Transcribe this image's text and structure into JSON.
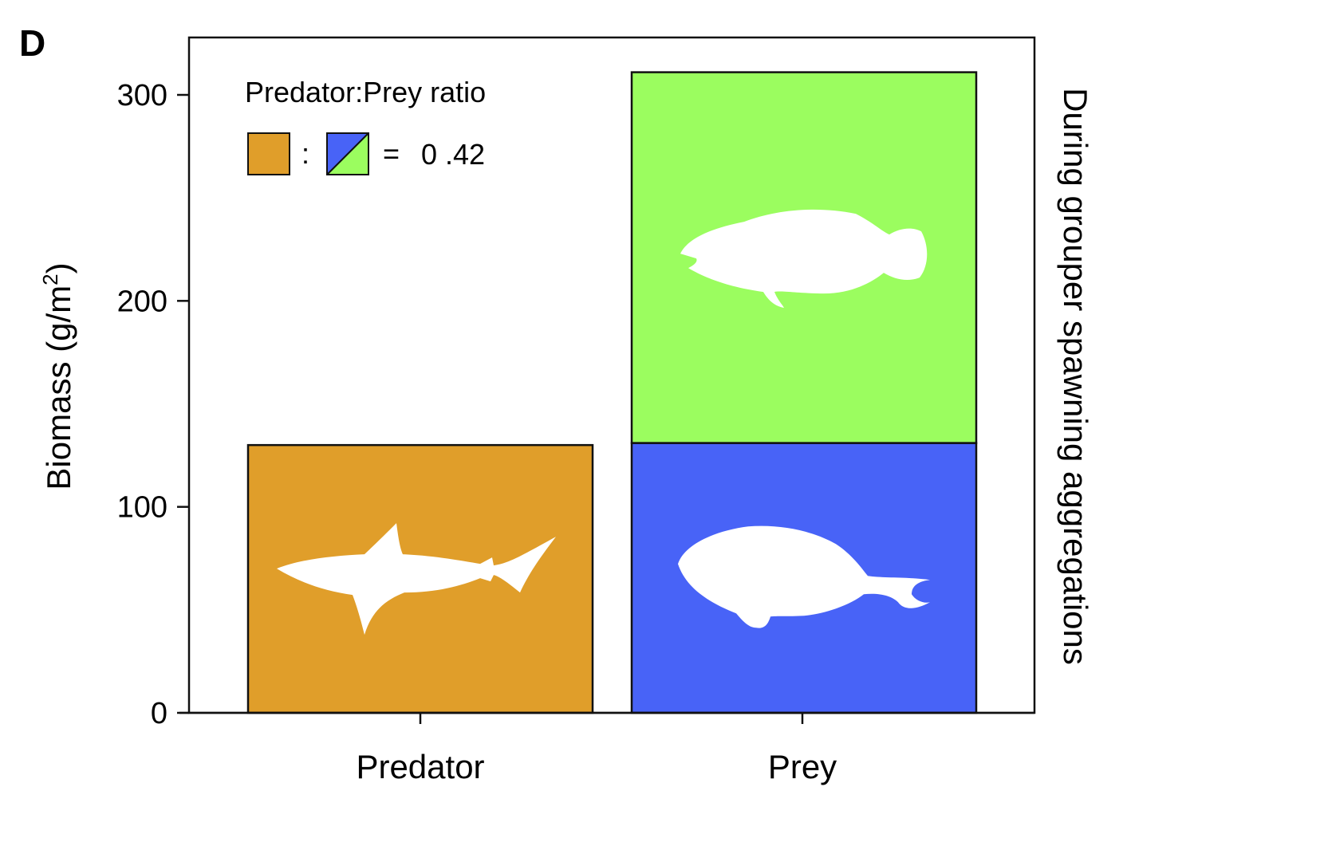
{
  "panel_label": "D",
  "chart_data": {
    "type": "bar",
    "categories": [
      "Predator",
      "Prey"
    ],
    "bars": [
      {
        "category": "Predator",
        "segments": [
          {
            "value": 130,
            "color": "#E09E2A",
            "icon": "shark-silhouette-icon"
          }
        ]
      },
      {
        "category": "Prey",
        "segments": [
          {
            "value": 131,
            "color": "#4863F7",
            "icon": "parrotfish-silhouette-icon"
          },
          {
            "value": 180,
            "color": "#9BFD5F",
            "icon": "grouper-silhouette-icon"
          }
        ]
      }
    ],
    "ylabel": "Biomass (g/m",
    "ylabel_sup": "2",
    "ylabel_close": ")",
    "right_label": "During grouper spawning aggregations",
    "ylim": [
      0,
      330
    ],
    "yticks": [
      0,
      100,
      200,
      300
    ],
    "grid": false,
    "legend": {
      "title": "Predator:Prey ratio",
      "colon": ":",
      "equals": "=",
      "ratio": "0 .42",
      "placement": "top-left"
    }
  }
}
